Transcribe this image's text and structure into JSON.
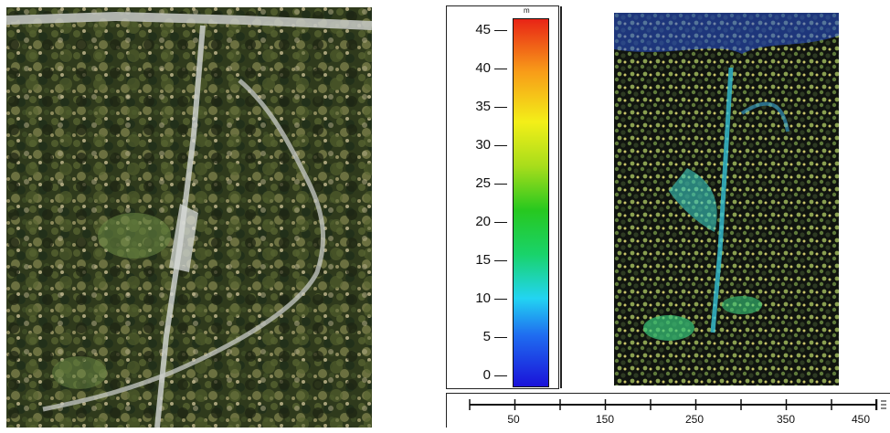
{
  "photo": {
    "description_icon": "aerial-forest-photo"
  },
  "legend": {
    "unit": "m",
    "ticks": [
      {
        "label": "45",
        "value": 45
      },
      {
        "label": "40",
        "value": 40
      },
      {
        "label": "35",
        "value": 35
      },
      {
        "label": "30",
        "value": 30
      },
      {
        "label": "25",
        "value": 25
      },
      {
        "label": "20",
        "value": 20
      },
      {
        "label": "15",
        "value": 15
      },
      {
        "label": "10",
        "value": 10
      },
      {
        "label": "5",
        "value": 5
      },
      {
        "label": "0",
        "value": 0
      }
    ]
  },
  "scalebar": {
    "labels": [
      "50",
      "150",
      "250",
      "350",
      "450"
    ]
  },
  "colors": {
    "low": "#1a12d9",
    "mid": "#27c81f",
    "high": "#e82416"
  }
}
